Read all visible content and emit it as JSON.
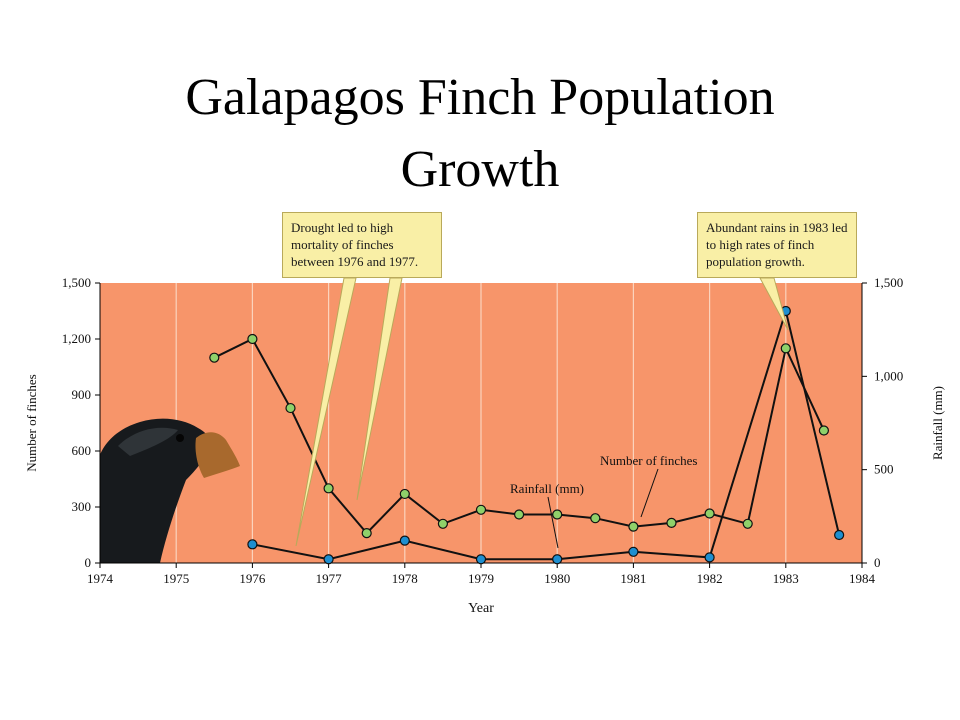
{
  "title_line1": "Galapagos Finch Population",
  "title_line2": "Growth",
  "callouts": {
    "drought": "Drought led to high mortality of finches between 1976 and 1977.",
    "rains": "Abundant rains in 1983 led to high rates of finch population growth."
  },
  "chart_data": {
    "type": "line",
    "xlabel": "Year",
    "ylabel_left": "Number of finches",
    "ylabel_right": "Rainfall (mm)",
    "xlim": [
      1974,
      1984
    ],
    "ylim_left": [
      0,
      1500
    ],
    "ylim_right": [
      0,
      1500
    ],
    "x_ticks": [
      "1974",
      "1975",
      "1976",
      "1977",
      "1978",
      "1979",
      "1980",
      "1981",
      "1982",
      "1983",
      "1984"
    ],
    "y_ticks_left": [
      "0",
      "300",
      "600",
      "900",
      "1,200",
      "1,500"
    ],
    "y_ticks_right": [
      "0",
      "500",
      "1,000",
      "1,500"
    ],
    "grid": true,
    "background": "#f7956a",
    "series": [
      {
        "name": "Number of finches",
        "color": "#8fd16a",
        "x": [
          1975.5,
          1976.0,
          1976.5,
          1977.0,
          1977.5,
          1978.0,
          1978.5,
          1979.0,
          1979.5,
          1980.0,
          1980.5,
          1981.0,
          1981.5,
          1982.0,
          1982.5,
          1983.0,
          1983.5
        ],
        "y": [
          1100,
          1200,
          830,
          400,
          160,
          370,
          210,
          285,
          260,
          260,
          240,
          195,
          215,
          265,
          210,
          1150,
          710
        ]
      },
      {
        "name": "Rainfall (mm)",
        "color": "#1e8fd0",
        "x": [
          1976.0,
          1977.0,
          1978.0,
          1979.0,
          1980.0,
          1981.0,
          1982.0,
          1983.0,
          1983.7
        ],
        "y": [
          100,
          20,
          120,
          20,
          20,
          60,
          30,
          1350,
          150
        ]
      }
    ],
    "annotations": [
      {
        "text": "Rainfall (mm)"
      },
      {
        "text": "Number of finches"
      }
    ]
  }
}
